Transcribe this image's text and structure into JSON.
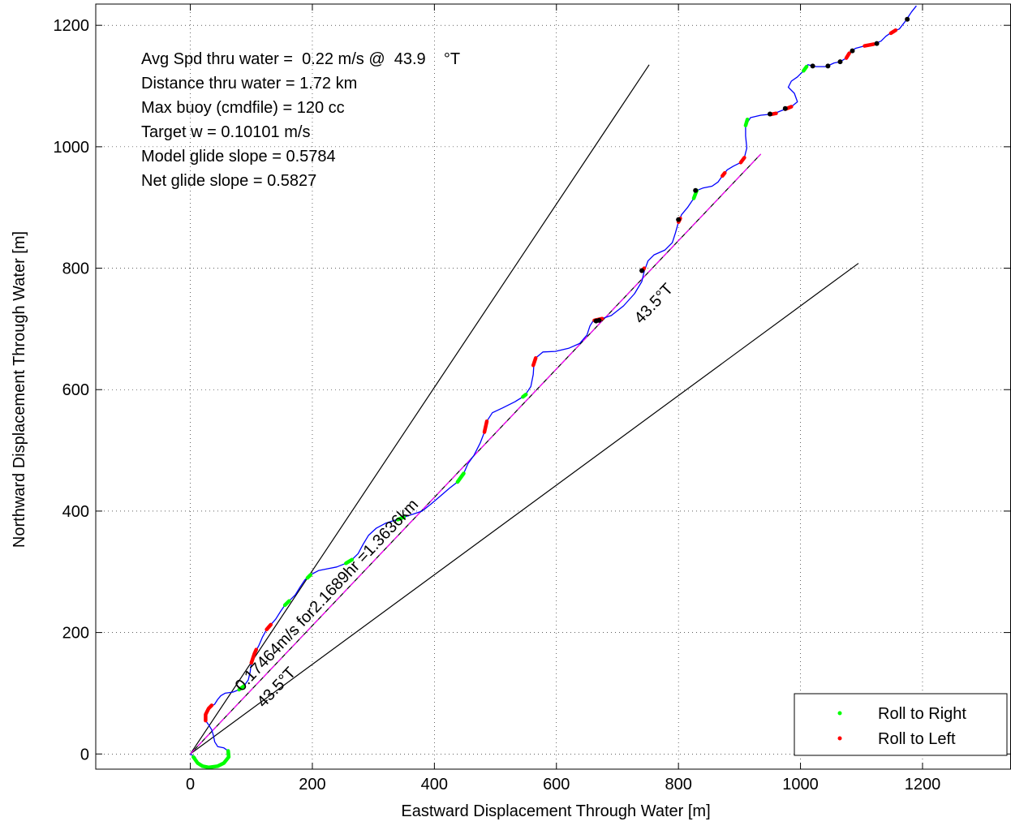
{
  "chart_data": {
    "type": "line",
    "xlabel": "Eastward Displacement Through Water [m]",
    "ylabel": "Northward Displacement Through Water [m]",
    "xlim": [
      -155,
      1345
    ],
    "ylim": [
      -25,
      1235
    ],
    "xticks": [
      0,
      200,
      400,
      600,
      800,
      1000,
      1200
    ],
    "yticks": [
      0,
      200,
      400,
      600,
      800,
      1000,
      1200
    ],
    "grid": true,
    "legend_position": "bottom-right",
    "legend": [
      {
        "label": "Roll to Right",
        "color": "#00ff00"
      },
      {
        "label": "Roll to Left",
        "color": "#ff0000"
      }
    ],
    "annotations": [
      "Avg Spd thru water =  0.22 m/s @  43.9    °T",
      "Distance thru water =  1.72 km",
      "Max buoy (cmdfile) = 120 cc",
      "Target w = 0.10101 m/s",
      "Model glide slope = 0.5784",
      "Net glide slope = 0.5827"
    ],
    "line_labels": {
      "upper_heading": "43.5°T",
      "lower_heading": "43.5°T",
      "speed": "0.17464m/s for2.1689hr =1.3636km"
    },
    "reference_lines": {
      "upper_bound": [
        [
          0,
          0
        ],
        [
          752,
          1135
        ]
      ],
      "center": [
        [
          0,
          0
        ],
        [
          935,
          988
        ]
      ],
      "lower_bound": [
        [
          0,
          0
        ],
        [
          1095,
          808
        ]
      ],
      "net_track": [
        [
          0,
          0
        ],
        [
          935,
          988
        ]
      ]
    },
    "series": [
      {
        "name": "track",
        "color": "#0000ff",
        "points": [
          [
            0,
            0
          ],
          [
            8,
            -5
          ],
          [
            12,
            -15
          ],
          [
            20,
            -20
          ],
          [
            30,
            -22
          ],
          [
            45,
            -20
          ],
          [
            55,
            -15
          ],
          [
            63,
            -5
          ],
          [
            62,
            5
          ],
          [
            55,
            10
          ],
          [
            45,
            12
          ],
          [
            40,
            20
          ],
          [
            38,
            30
          ],
          [
            35,
            40
          ],
          [
            30,
            48
          ],
          [
            25,
            55
          ],
          [
            25,
            65
          ],
          [
            30,
            75
          ],
          [
            40,
            82
          ],
          [
            45,
            90
          ],
          [
            50,
            96
          ],
          [
            57,
            100
          ],
          [
            70,
            102
          ],
          [
            80,
            106
          ],
          [
            88,
            112
          ],
          [
            95,
            122
          ],
          [
            98,
            135
          ],
          [
            100,
            150
          ],
          [
            105,
            165
          ],
          [
            112,
            178
          ],
          [
            118,
            192
          ],
          [
            125,
            205
          ],
          [
            132,
            213
          ],
          [
            140,
            222
          ],
          [
            148,
            235
          ],
          [
            155,
            245
          ],
          [
            162,
            252
          ],
          [
            172,
            262
          ],
          [
            180,
            275
          ],
          [
            188,
            287
          ],
          [
            197,
            295
          ],
          [
            210,
            302
          ],
          [
            225,
            305
          ],
          [
            240,
            308
          ],
          [
            255,
            314
          ],
          [
            265,
            320
          ],
          [
            275,
            330
          ],
          [
            283,
            345
          ],
          [
            292,
            360
          ],
          [
            305,
            372
          ],
          [
            320,
            380
          ],
          [
            335,
            385
          ],
          [
            350,
            390
          ],
          [
            365,
            395
          ],
          [
            380,
            400
          ],
          [
            395,
            412
          ],
          [
            410,
            425
          ],
          [
            425,
            438
          ],
          [
            438,
            448
          ],
          [
            448,
            462
          ],
          [
            455,
            478
          ],
          [
            465,
            492
          ],
          [
            475,
            512
          ],
          [
            482,
            530
          ],
          [
            486,
            548
          ],
          [
            495,
            562
          ],
          [
            512,
            570
          ],
          [
            532,
            580
          ],
          [
            548,
            590
          ],
          [
            558,
            605
          ],
          [
            562,
            625
          ],
          [
            563,
            640
          ],
          [
            566,
            652
          ],
          [
            578,
            662
          ],
          [
            598,
            663
          ],
          [
            620,
            668
          ],
          [
            638,
            676
          ],
          [
            650,
            690
          ],
          [
            655,
            705
          ],
          [
            660,
            713
          ],
          [
            672,
            716
          ],
          [
            690,
            722
          ],
          [
            710,
            738
          ],
          [
            728,
            758
          ],
          [
            740,
            778
          ],
          [
            744,
            795
          ],
          [
            750,
            812
          ],
          [
            760,
            822
          ],
          [
            778,
            830
          ],
          [
            790,
            842
          ],
          [
            795,
            858
          ],
          [
            800,
            876
          ],
          [
            805,
            888
          ],
          [
            815,
            900
          ],
          [
            825,
            915
          ],
          [
            830,
            928
          ],
          [
            840,
            932
          ],
          [
            855,
            935
          ],
          [
            865,
            942
          ],
          [
            872,
            952
          ],
          [
            880,
            962
          ],
          [
            890,
            968
          ],
          [
            902,
            974
          ],
          [
            908,
            982
          ],
          [
            912,
            998
          ],
          [
            910,
            1018
          ],
          [
            910,
            1035
          ],
          [
            918,
            1048
          ],
          [
            935,
            1052
          ],
          [
            955,
            1054
          ],
          [
            970,
            1060
          ],
          [
            985,
            1066
          ],
          [
            995,
            1074
          ],
          [
            990,
            1088
          ],
          [
            980,
            1098
          ],
          [
            985,
            1108
          ],
          [
            995,
            1115
          ],
          [
            1005,
            1125
          ],
          [
            1012,
            1135
          ],
          [
            1025,
            1132
          ],
          [
            1042,
            1132
          ],
          [
            1055,
            1138
          ],
          [
            1065,
            1140
          ],
          [
            1075,
            1146
          ],
          [
            1080,
            1154
          ],
          [
            1090,
            1162
          ],
          [
            1105,
            1166
          ],
          [
            1120,
            1169
          ],
          [
            1132,
            1174
          ],
          [
            1140,
            1182
          ],
          [
            1150,
            1189
          ],
          [
            1162,
            1194
          ],
          [
            1172,
            1207
          ],
          [
            1182,
            1222
          ],
          [
            1190,
            1232
          ]
        ]
      },
      {
        "name": "Roll to Right",
        "color": "#00ff00",
        "segments": [
          [
            [
              5,
              -5
            ],
            [
              12,
              -15
            ],
            [
              20,
              -20
            ],
            [
              30,
              -22
            ],
            [
              45,
              -20
            ],
            [
              55,
              -15
            ],
            [
              63,
              -5
            ],
            [
              62,
              5
            ]
          ],
          [
            [
              80,
              106
            ],
            [
              88,
              112
            ]
          ],
          [
            [
              155,
              245
            ],
            [
              162,
              252
            ]
          ],
          [
            [
              192,
              290
            ],
            [
              197,
              295
            ]
          ],
          [
            [
              255,
              314
            ],
            [
              265,
              320
            ]
          ],
          [
            [
              340,
              386
            ],
            [
              350,
              390
            ]
          ],
          [
            [
              438,
              448
            ],
            [
              448,
              462
            ]
          ],
          [
            [
              545,
              588
            ],
            [
              550,
              592
            ]
          ],
          [
            [
              825,
              915
            ],
            [
              830,
              928
            ]
          ],
          [
            [
              910,
              1035
            ],
            [
              913,
              1045
            ]
          ],
          [
            [
              1005,
              1125
            ],
            [
              1010,
              1132
            ]
          ]
        ]
      },
      {
        "name": "Roll to Left",
        "color": "#ff0000",
        "segments": [
          [
            [
              25,
              55
            ],
            [
              25,
              65
            ],
            [
              30,
              75
            ],
            [
              35,
              80
            ]
          ],
          [
            [
              100,
              150
            ],
            [
              105,
              165
            ],
            [
              108,
              172
            ]
          ],
          [
            [
              125,
              205
            ],
            [
              132,
              213
            ]
          ],
          [
            [
              482,
              530
            ],
            [
              486,
              548
            ]
          ],
          [
            [
              562,
              640
            ],
            [
              566,
              652
            ]
          ],
          [
            [
              662,
              714
            ],
            [
              675,
              717
            ]
          ],
          [
            [
              740,
              795
            ],
            [
              744,
              800
            ]
          ],
          [
            [
              800,
              876
            ],
            [
              803,
              882
            ]
          ],
          [
            [
              872,
              952
            ],
            [
              876,
              957
            ]
          ],
          [
            [
              902,
              974
            ],
            [
              908,
              982
            ]
          ],
          [
            [
              950,
              1053
            ],
            [
              960,
              1055
            ]
          ],
          [
            [
              975,
              1062
            ],
            [
              985,
              1066
            ]
          ],
          [
            [
              1075,
              1146
            ],
            [
              1080,
              1154
            ]
          ],
          [
            [
              1105,
              1166
            ],
            [
              1120,
              1169
            ]
          ],
          [
            [
              1148,
              1187
            ],
            [
              1156,
              1192
            ]
          ]
        ]
      },
      {
        "name": "markers",
        "color": "#000000",
        "points": [
          [
            665,
            713
          ],
          [
            670,
            714
          ],
          [
            740,
            796
          ],
          [
            800,
            880
          ],
          [
            828,
            928
          ],
          [
            950,
            1054
          ],
          [
            975,
            1063
          ],
          [
            1020,
            1133
          ],
          [
            1045,
            1133
          ],
          [
            1065,
            1140
          ],
          [
            1085,
            1158
          ],
          [
            1125,
            1170
          ],
          [
            1175,
            1210
          ]
        ]
      }
    ]
  }
}
